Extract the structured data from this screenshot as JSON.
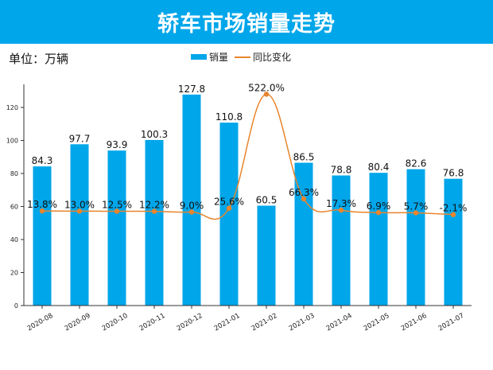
{
  "header": {
    "title": "轿车市场销量走势"
  },
  "unit_label": "单位：万辆",
  "colors": {
    "header": "#00a6ea",
    "bar": "#00a6ea",
    "line": "#e8852c"
  },
  "chart_data": {
    "type": "bar+line",
    "categories": [
      "2020-08",
      "2020-09",
      "2020-10",
      "2020-11",
      "2020-12",
      "2021-01",
      "2021-02",
      "2021-03",
      "2021-04",
      "2021-05",
      "2021-06",
      "2021-07"
    ],
    "series": [
      {
        "name": "销量",
        "type": "bar",
        "axis": "left",
        "values": [
          84.3,
          97.7,
          93.9,
          100.3,
          127.8,
          110.8,
          60.5,
          86.5,
          78.8,
          80.4,
          82.6,
          76.8
        ],
        "labels": [
          "84.3",
          "97.7",
          "93.9",
          "100.3",
          "127.8",
          "110.8",
          "60.5",
          "86.5",
          "78.8",
          "80.4",
          "82.6",
          "76.8"
        ]
      },
      {
        "name": "同比变化",
        "type": "line",
        "smooth": true,
        "axis": "right-hidden",
        "values": [
          13.8,
          13.0,
          12.5,
          12.2,
          9.0,
          25.6,
          522.0,
          66.3,
          17.3,
          6.9,
          5.7,
          -2.1
        ],
        "labels": [
          "13.8%",
          "13.0%",
          "12.5%",
          "12.2%",
          "9.0%",
          "25.6%",
          "522.0%",
          "66.3%",
          "17.3%",
          "6.9%",
          "5.7%",
          "-2.1%"
        ]
      }
    ],
    "ylim": [
      0,
      134
    ],
    "y2lim": [
      -398,
      565
    ],
    "yticks": [
      0,
      20,
      40,
      60,
      80,
      100,
      120
    ],
    "grid": false,
    "legend": "top-center"
  }
}
